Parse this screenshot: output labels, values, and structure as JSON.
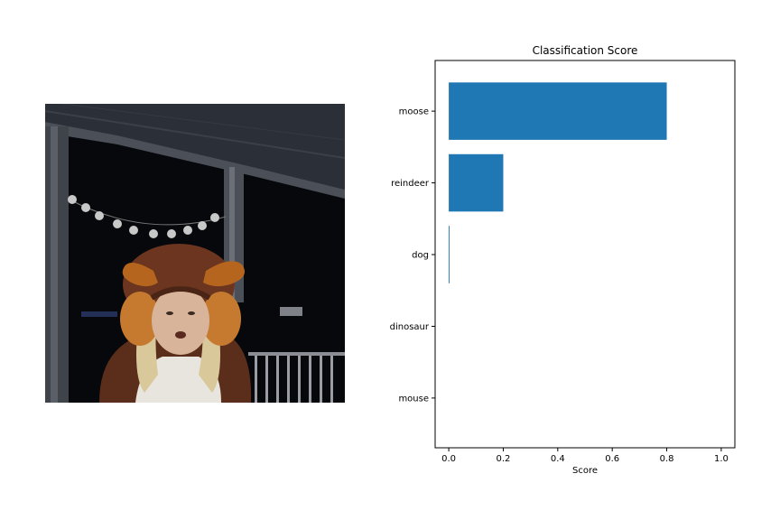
{
  "image_panel": {
    "description_icon": "photo-of-person-in-moose-costume-icon"
  },
  "chart_data": {
    "type": "bar",
    "orientation": "horizontal",
    "title": "Classification Score",
    "xlabel": "Score",
    "ylabel": "",
    "categories": [
      "moose",
      "reindeer",
      "dog",
      "dinosaur",
      "mouse"
    ],
    "values": [
      0.8,
      0.2,
      0.003,
      0.0,
      0.0
    ],
    "xlim": [
      -0.05,
      1.05
    ],
    "xticks": [
      "0.0",
      "0.2",
      "0.4",
      "0.6",
      "0.8",
      "1.0"
    ],
    "xtick_values": [
      0.0,
      0.2,
      0.4,
      0.6,
      0.8,
      1.0
    ],
    "bar_color": "#1f77b4",
    "grid": false,
    "legend": "none"
  }
}
